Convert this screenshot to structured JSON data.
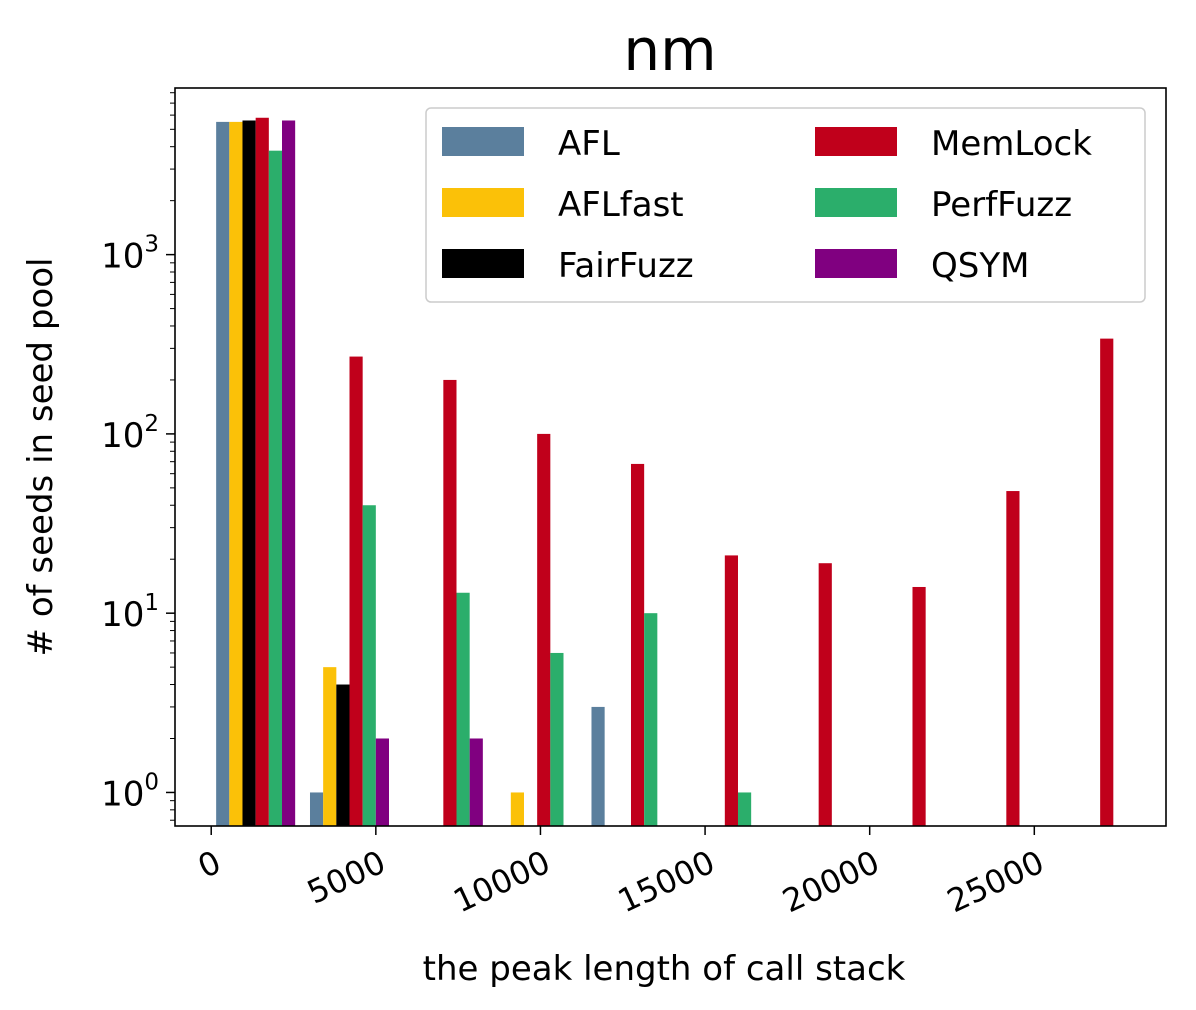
{
  "chart_data": {
    "type": "bar",
    "title": "nm",
    "xlabel": "the peak length of call stack",
    "ylabel": "# of seeds in seed pool",
    "yscale": "log",
    "ylim": [
      0.65,
      8500
    ],
    "xlim": [
      -1100,
      29000
    ],
    "x_ticks": [
      "0",
      "5000",
      "10000",
      "15000",
      "20000",
      "25000"
    ],
    "y_ticks": [
      {
        "base": "10",
        "exp": "0"
      },
      {
        "base": "10",
        "exp": "1"
      },
      {
        "base": "10",
        "exp": "2"
      },
      {
        "base": "10",
        "exp": "3"
      }
    ],
    "legend_position": "top-right",
    "grid": false,
    "bin_centers": [
      1350,
      4200,
      7050,
      9900,
      12750,
      15600,
      18450,
      21300,
      24150,
      27000
    ],
    "series": [
      {
        "name": "AFL",
        "color": "#5b7f9d",
        "values": [
          5500,
          1,
          0,
          0,
          3,
          0,
          0,
          0,
          0,
          0
        ]
      },
      {
        "name": "AFLfast",
        "color": "#fbc108",
        "values": [
          5500,
          5,
          0,
          1,
          0,
          0,
          0,
          0,
          0,
          0
        ]
      },
      {
        "name": "FairFuzz",
        "color": "#000000",
        "values": [
          5600,
          4,
          0,
          0,
          0,
          0,
          0,
          0,
          0,
          0
        ]
      },
      {
        "name": "MemLock",
        "color": "#c0001b",
        "values": [
          5800,
          270,
          200,
          100,
          68,
          21,
          19,
          14,
          48,
          340
        ]
      },
      {
        "name": "PerfFuzz",
        "color": "#2bae6b",
        "values": [
          3800,
          40,
          13,
          6,
          10,
          1,
          0,
          0,
          0,
          0
        ]
      },
      {
        "name": "QSYM",
        "color": "#800080",
        "values": [
          5600,
          2,
          2,
          0,
          0,
          0,
          0,
          0,
          0,
          0
        ]
      }
    ]
  }
}
